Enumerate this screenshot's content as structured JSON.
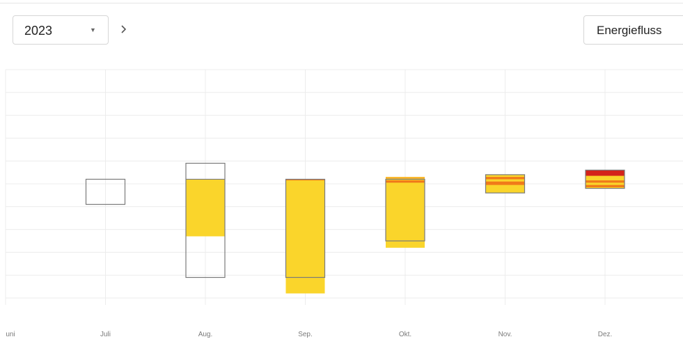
{
  "controls": {
    "year": "2023",
    "year_dropdown_icon": "caret-down-icon",
    "next_icon": "chevron-right-icon",
    "view": "Energiefluss"
  },
  "chart_data": {
    "type": "bar",
    "subtype": "floating-stacked-waterfall",
    "categories": [
      "Juni",
      "Juli",
      "Aug.",
      "Sep.",
      "Okt.",
      "Nov.",
      "Dez."
    ],
    "category_labels": [
      "uni",
      "Juli",
      "Aug.",
      "Sep.",
      "Okt.",
      "Nov.",
      "Dez."
    ],
    "ylim": [
      0,
      10
    ],
    "grid": true,
    "y_tick_values": [
      0,
      1,
      2,
      3,
      4,
      5,
      6,
      7,
      8,
      9,
      10
    ],
    "colors": {
      "outline": "#7a7a7a",
      "yellow": "#fad52b",
      "light_orange": "#fbb62a",
      "orange": "#f07a1a",
      "red": "#d4231a"
    },
    "outlined_ranges": [
      {
        "category": "Juli",
        "from": 4.1,
        "to": 5.2
      },
      {
        "category": "Aug.",
        "from": 0.9,
        "to": 5.9
      },
      {
        "category": "Sep.",
        "from": 0.9,
        "to": 5.2
      },
      {
        "category": "Okt.",
        "from": 2.5,
        "to": 5.2
      },
      {
        "category": "Nov.",
        "from": 4.6,
        "to": 5.4
      },
      {
        "category": "Dez.",
        "from": 4.8,
        "to": 5.6
      }
    ],
    "filled_segments": [
      {
        "category": "Aug.",
        "color": "yellow",
        "from": 2.7,
        "to": 5.2
      },
      {
        "category": "Sep.",
        "color": "yellow",
        "from": 0.2,
        "to": 5.2
      },
      {
        "category": "Sep.",
        "color": "orange",
        "from": 5.15,
        "to": 5.2
      },
      {
        "category": "Okt.",
        "color": "yellow",
        "from": 2.2,
        "to": 5.3
      },
      {
        "category": "Okt.",
        "color": "light_orange",
        "from": 5.2,
        "to": 5.3
      },
      {
        "category": "Okt.",
        "color": "orange",
        "from": 5.05,
        "to": 5.15
      },
      {
        "category": "Nov.",
        "color": "yellow",
        "from": 4.6,
        "to": 5.4
      },
      {
        "category": "Nov.",
        "color": "orange",
        "from": 5.2,
        "to": 5.3
      },
      {
        "category": "Nov.",
        "color": "orange",
        "from": 4.95,
        "to": 5.1
      },
      {
        "category": "Dez.",
        "color": "yellow",
        "from": 4.8,
        "to": 5.6
      },
      {
        "category": "Dez.",
        "color": "red",
        "from": 5.35,
        "to": 5.6
      },
      {
        "category": "Dez.",
        "color": "orange",
        "from": 5.05,
        "to": 5.15
      },
      {
        "category": "Dez.",
        "color": "orange",
        "from": 4.85,
        "to": 4.95
      }
    ]
  }
}
